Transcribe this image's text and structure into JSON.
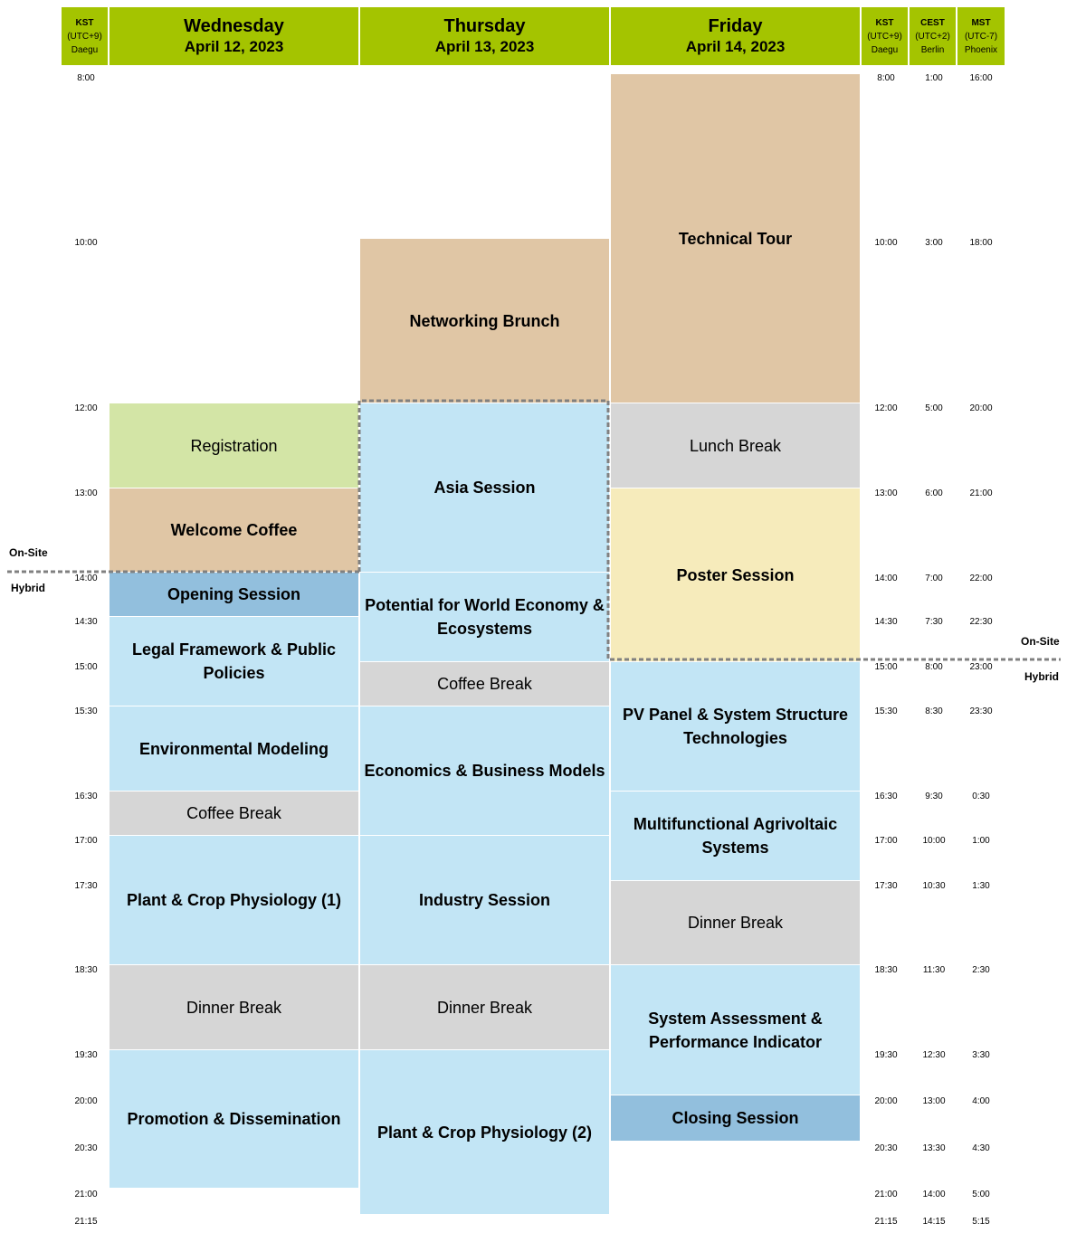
{
  "headers": {
    "kst_left": {
      "abbr": "KST",
      "offset": "(UTC+9)",
      "city": "Daegu"
    },
    "kst_right": {
      "abbr": "KST",
      "offset": "(UTC+9)",
      "city": "Daegu"
    },
    "cest": {
      "abbr": "CEST",
      "offset": "(UTC+2)",
      "city": "Berlin"
    },
    "mst": {
      "abbr": "MST",
      "offset": "(UTC-7)",
      "city": "Phoenix"
    },
    "wed": {
      "day": "Wednesday",
      "date": "April 12, 2023"
    },
    "thu": {
      "day": "Thursday",
      "date": "April 13, 2023"
    },
    "fri": {
      "day": "Friday",
      "date": "April 14, 2023"
    }
  },
  "times": {
    "kst": [
      "8:00",
      "10:00",
      "12:00",
      "13:00",
      "14:00",
      "14:30",
      "15:00",
      "15:30",
      "16:30",
      "17:00",
      "17:30",
      "18:30",
      "19:30",
      "20:00",
      "20:30",
      "21:00",
      "21:15"
    ],
    "cest": [
      "1:00",
      "3:00",
      "5:00",
      "6:00",
      "7:00",
      "7:30",
      "8:00",
      "8:30",
      "9:30",
      "10:00",
      "10:30",
      "11:30",
      "12:30",
      "13:00",
      "13:30",
      "14:00",
      "14:15"
    ],
    "mst": [
      "16:00",
      "18:00",
      "20:00",
      "21:00",
      "22:00",
      "22:30",
      "23:00",
      "23:30",
      "0:30",
      "1:00",
      "1:30",
      "2:30",
      "3:30",
      "4:00",
      "4:30",
      "5:00",
      "5:15"
    ]
  },
  "modes": {
    "left_onsite": "On-Site",
    "left_hybrid": "Hybrid",
    "right_onsite": "On-Site",
    "right_hybrid": "Hybrid"
  },
  "sessions": {
    "wed": {
      "registration": "Registration",
      "welcome_coffee": "Welcome Coffee",
      "opening": "Opening Session",
      "legal": "Legal Framework & Public Policies",
      "environmental": "Environmental Modeling",
      "coffee": "Coffee Break",
      "plant1": "Plant & Crop Physiology (1)",
      "dinner": "Dinner Break",
      "promotion": "Promotion & Dissemination"
    },
    "thu": {
      "brunch": "Networking Brunch",
      "asia": "Asia Session",
      "potential": "Potential for World Economy & Ecosystems",
      "coffee": "Coffee Break",
      "economics": "Economics & Business Models",
      "industry": "Industry Session",
      "dinner": "Dinner Break",
      "plant2": "Plant & Crop Physiology (2)"
    },
    "fri": {
      "tour": "Technical Tour",
      "lunch": "Lunch Break",
      "poster": "Poster Session",
      "pv": "PV Panel & System Structure Technologies",
      "multi": "Multifunctional Agrivoltaic Systems",
      "dinner": "Dinner Break",
      "assessment": "System Assessment & Performance Indicator",
      "closing": "Closing Session"
    }
  }
}
